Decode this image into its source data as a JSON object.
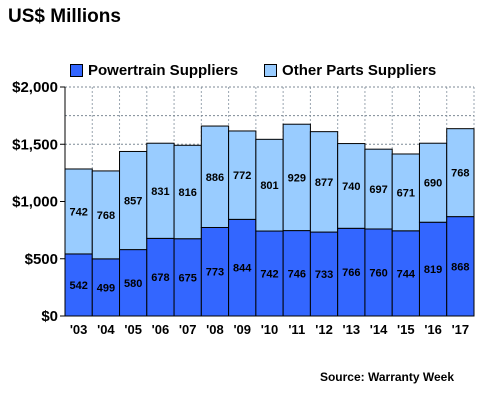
{
  "chart_data": {
    "type": "bar",
    "stacked": true,
    "title": "US$ Millions",
    "source": "Source: Warranty Week",
    "categories": [
      "'03",
      "'04",
      "'05",
      "'06",
      "'07",
      "'08",
      "'09",
      "'10",
      "'11",
      "'12",
      "'13",
      "'14",
      "'15",
      "'16",
      "'17"
    ],
    "series": [
      {
        "name": "Powertrain Suppliers",
        "color": "#3366ff",
        "values": [
          542,
          499,
          580,
          678,
          675,
          773,
          844,
          742,
          746,
          733,
          766,
          760,
          744,
          819,
          868
        ]
      },
      {
        "name": "Other Parts Suppliers",
        "color": "#99ccff",
        "values": [
          742,
          768,
          857,
          831,
          816,
          886,
          772,
          801,
          929,
          877,
          740,
          697,
          671,
          690,
          768
        ]
      }
    ],
    "ylim": [
      0,
      2000
    ],
    "yticks": [
      0,
      500,
      1000,
      1500,
      2000
    ],
    "ytick_labels": [
      "$0",
      "$500",
      "$1,000",
      "$1,500",
      "$2,000"
    ],
    "grid": true,
    "legend_position": "top"
  }
}
